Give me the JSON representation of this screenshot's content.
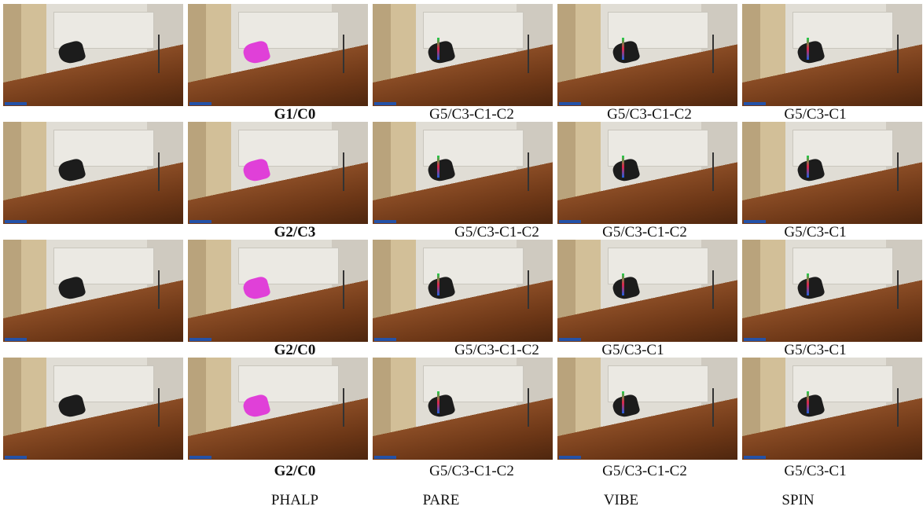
{
  "rows": [
    {
      "captions": [
        "G1/C0",
        "G5/C3-C1-C2",
        "G5/C3-C1-C2",
        "G5/C3-C1"
      ]
    },
    {
      "captions": [
        "G2/C3",
        "G5/C3-C1-C2",
        "G5/C3-C1-C2",
        "G5/C3-C1"
      ]
    },
    {
      "captions": [
        "G2/C0",
        "G5/C3-C1-C2",
        "G5/C3-C1",
        "G5/C3-C1"
      ]
    },
    {
      "captions": [
        "G2/C0",
        "G5/C3-C1-C2",
        "G5/C3-C1-C2",
        "G5/C3-C1"
      ]
    }
  ],
  "methods": [
    "PHALP",
    "PARE",
    "VIBE",
    "SPIN"
  ]
}
